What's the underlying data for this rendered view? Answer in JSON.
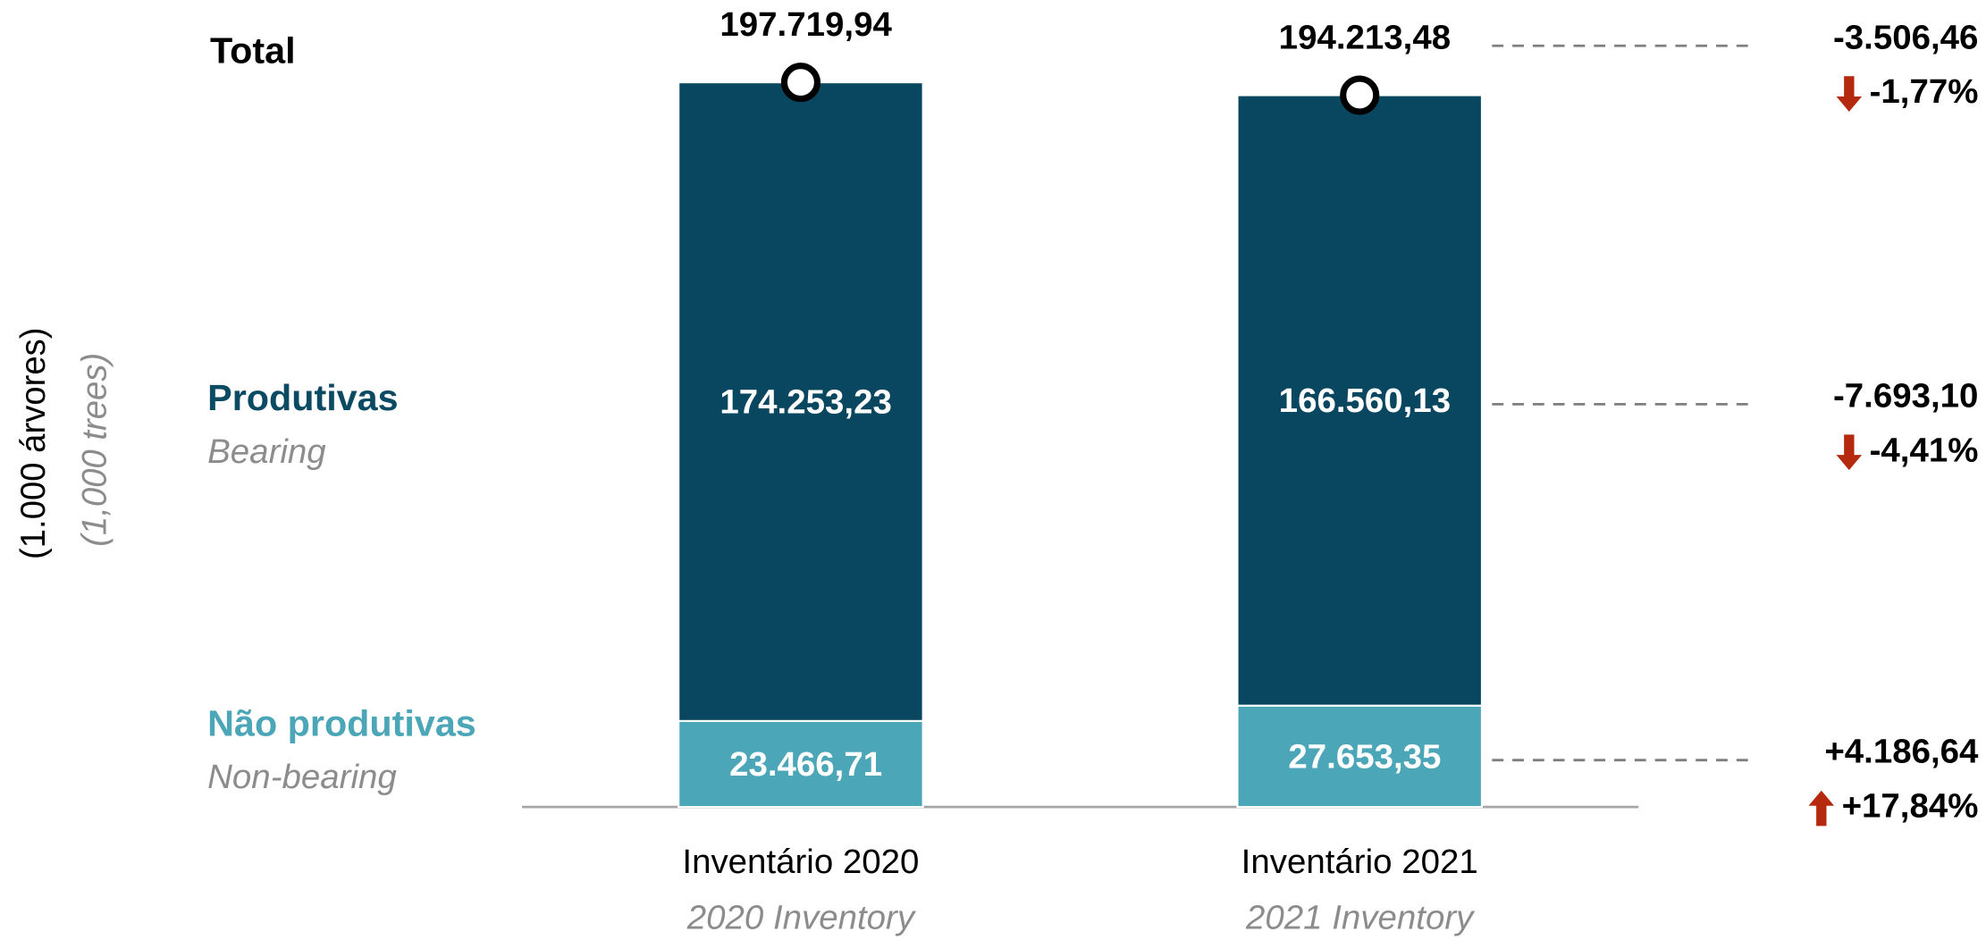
{
  "chart_data": {
    "type": "bar",
    "stacked": true,
    "axis_label": "(1.000 árvores)",
    "axis_label_en": "(1,000 trees)",
    "total_label": "Total",
    "categories": [
      "Inventário 2020",
      "Inventário 2021"
    ],
    "categories_en": [
      "2020 Inventory",
      "2021 Inventory"
    ],
    "series": [
      {
        "name": "Não produtivas",
        "name_en": "Non-bearing",
        "color": "#4ba6b7",
        "values": [
          23466.71,
          27653.35
        ],
        "value_labels": [
          "23.466,71",
          "27.653,35"
        ]
      },
      {
        "name": "Produtivas",
        "name_en": "Bearing",
        "color": "#08475f",
        "values": [
          174253.23,
          166560.13
        ],
        "value_labels": [
          "174.253,23",
          "166.560,13"
        ]
      }
    ],
    "totals": {
      "values": [
        197719.94,
        194213.48
      ],
      "value_labels": [
        "197.719,94",
        "194.213,48"
      ]
    },
    "series_changes": [
      {
        "value": 4186.64,
        "label": "+4.186,64",
        "percent": 17.84,
        "percent_label": "+17,84%"
      },
      {
        "value": -7693.1,
        "label": "-7.693,10",
        "percent": -4.41,
        "percent_label": "-4,41%"
      }
    ],
    "total_change": {
      "value": -3506.46,
      "label": "-3.506,46",
      "percent": -1.77,
      "percent_label": "-1,77%"
    },
    "ylim": [
      0,
      200000
    ]
  }
}
